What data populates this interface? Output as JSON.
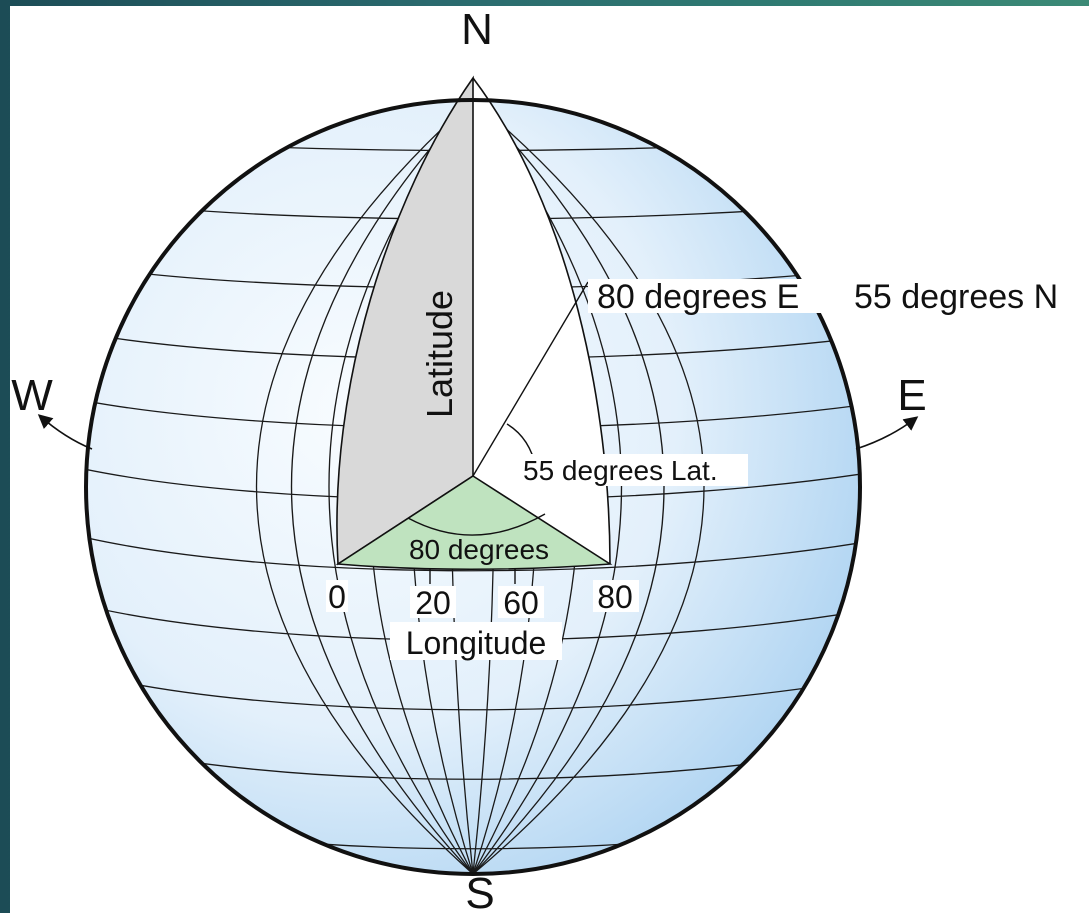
{
  "compass": {
    "north": "N",
    "south": "S",
    "west": "W",
    "east": "E"
  },
  "labels": {
    "latitude": "Latitude",
    "point_longitude": "80 degrees E",
    "point_latitude": "55 degrees N",
    "latitude_angle": "55 degrees Lat.",
    "longitude_angle": "80 degrees",
    "longitude": "Longitude"
  },
  "longitude_ticks": [
    "0",
    "20",
    "60",
    "80"
  ],
  "colors": {
    "globe_light": "#f6fbff",
    "globe_dark": "#a9d1f1",
    "latitude_wedge": "#d9d9d9",
    "longitude_wedge": "#bfe3bf",
    "outline": "#111111",
    "grid": "#1a1a1a",
    "background_frame": "#2a6a6e"
  }
}
